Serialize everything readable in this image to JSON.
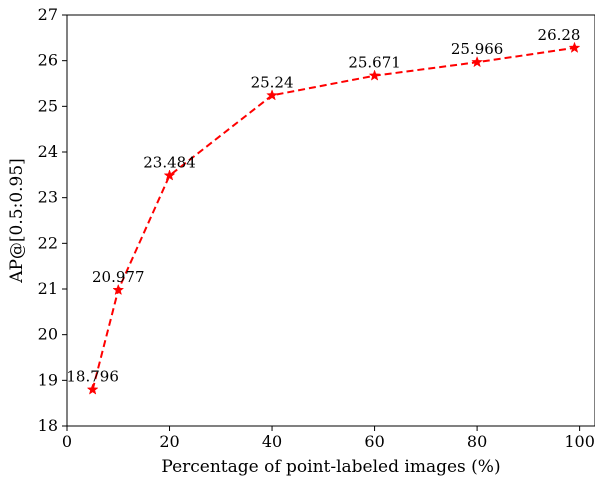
{
  "chart_data": {
    "type": "line",
    "xlabel": "Percentage of point-labeled images (%)",
    "ylabel": "AP@[0.5:0.95]",
    "xlim": [
      0,
      103
    ],
    "ylim": [
      18,
      27
    ],
    "x_ticks": [
      0,
      20,
      40,
      60,
      80,
      100
    ],
    "y_ticks": [
      18,
      19,
      20,
      21,
      22,
      23,
      24,
      25,
      26,
      27
    ],
    "grid": false,
    "series": [
      {
        "line_style": "dashed",
        "marker": "star",
        "color": "#ff0000",
        "points": [
          {
            "x": 5,
            "y": 18.796,
            "label": "18.796"
          },
          {
            "x": 10,
            "y": 20.977,
            "label": "20.977"
          },
          {
            "x": 20,
            "y": 23.484,
            "label": "23.484"
          },
          {
            "x": 40,
            "y": 25.24,
            "label": "25.24"
          },
          {
            "x": 60,
            "y": 25.671,
            "label": "25.671"
          },
          {
            "x": 80,
            "y": 25.966,
            "label": "25.966"
          },
          {
            "x": 99,
            "y": 26.28,
            "label": "26.28"
          }
        ]
      }
    ]
  }
}
